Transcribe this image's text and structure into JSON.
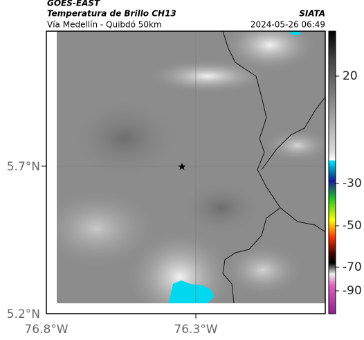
{
  "header": {
    "title": "GOES-EAST",
    "subtitle": "Temperatura de Brillo CH13",
    "location": "Vía Medellín - Quibdó 50km",
    "source": "SIATA",
    "datetime": "2024-05-26 06:49"
  },
  "map": {
    "lat_ticks": [
      "5.7°N",
      "5.2°N"
    ],
    "lon_ticks": [
      "76.8°W",
      "76.3°W"
    ]
  },
  "colorbar": {
    "ticks": [
      20,
      -30,
      -50,
      -70,
      -90
    ]
  }
}
